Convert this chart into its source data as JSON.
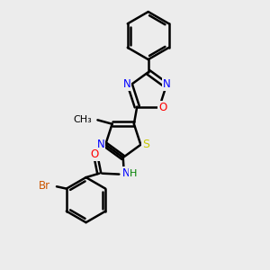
{
  "bg_color": "#ececec",
  "bond_color": "#000000",
  "bond_width": 1.8,
  "atom_colors": {
    "N": "#0000ff",
    "O": "#ff0000",
    "S": "#c8c800",
    "Br": "#cc5500",
    "C": "#000000",
    "H": "#008000"
  },
  "font_size": 9,
  "figure_size": [
    3.0,
    3.0
  ],
  "dpi": 100
}
